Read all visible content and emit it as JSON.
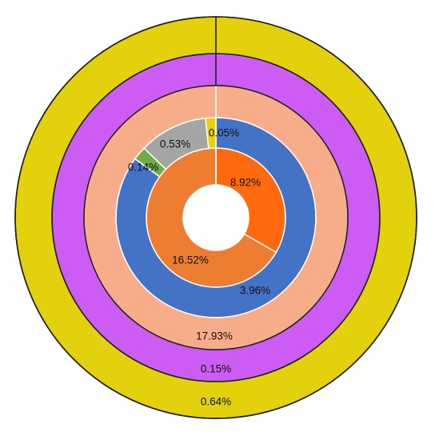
{
  "chart_data": {
    "type": "pie",
    "rings": [
      {
        "name": "",
        "slices": [
          {
            "label": "8.92%",
            "value": 8.92,
            "color": "#FF6A0E"
          },
          {
            "label": "16.52%",
            "value": 16.52,
            "color": "#ED7D31"
          }
        ]
      },
      {
        "name": "",
        "slices": [
          {
            "label": "3.96%",
            "value": 3.96,
            "color": "#4472C4"
          },
          {
            "label": "0.14%",
            "value": 0.14,
            "color": "#70AD47"
          },
          {
            "label": "0.53%",
            "value": 0.53,
            "color": "#A5A5A5"
          },
          {
            "label": "0.05%",
            "value": 0.05,
            "color": "#E8D20E"
          }
        ]
      },
      {
        "name": "",
        "slices": [
          {
            "label": "17.93%",
            "value": 17.93,
            "color": "#F8AD8A"
          }
        ]
      },
      {
        "name": "",
        "slices": [
          {
            "label": "0.15%",
            "value": 0.15,
            "color": "#CD5CF4"
          }
        ]
      },
      {
        "name": "",
        "slices": [
          {
            "label": "0.64%",
            "value": 0.64,
            "color": "#E2D10C"
          }
        ]
      }
    ]
  }
}
